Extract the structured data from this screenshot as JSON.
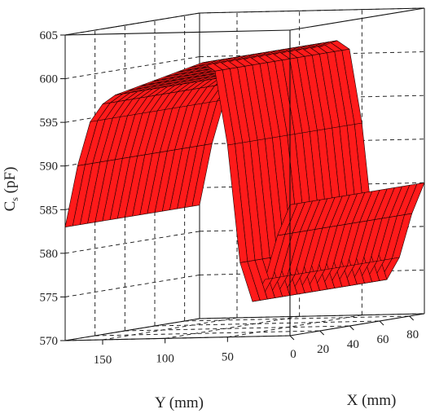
{
  "chart_data": {
    "type": "surface3d",
    "title": "",
    "xlabel": "X (mm)",
    "ylabel": "Y (mm)",
    "zlabel_main": "C",
    "zlabel_sub": "s",
    "zlabel_unit": " (pF)",
    "xlim": [
      0,
      90
    ],
    "ylim": [
      0,
      180
    ],
    "zlim": [
      570,
      605
    ],
    "x_ticks": [
      "0",
      "20",
      "40",
      "60",
      "80"
    ],
    "y_ticks": [
      "50",
      "100",
      "150"
    ],
    "z_ticks": [
      "570",
      "575",
      "580",
      "585",
      "590",
      "595",
      "600",
      "605"
    ],
    "surface_color": "#ff1a1a",
    "mesh_color": "#1a0000",
    "grid": "dashed",
    "surface_grid": {
      "x_values": [
        0,
        5,
        10,
        15,
        20,
        25,
        30,
        35,
        40,
        45,
        50,
        55,
        60,
        65,
        70,
        75,
        80,
        85,
        90
      ],
      "y_values": [
        0,
        10,
        20,
        30,
        40,
        50,
        60,
        70,
        80,
        90,
        100,
        110,
        120,
        130,
        140,
        150,
        160,
        170,
        180
      ],
      "z_values": [
        [
          585.0,
          581.5,
          576.5,
          574.0,
          578.5,
          592.0,
          600.5,
          601.5,
          601.0,
          600.5,
          600.0,
          599.5,
          599.0,
          598.5,
          598.0,
          597.0,
          595.0,
          590.0,
          583.0
        ],
        [
          585.0,
          581.5,
          576.5,
          574.0,
          578.5,
          592.0,
          600.5,
          601.5,
          601.0,
          600.5,
          600.0,
          599.5,
          599.0,
          598.5,
          598.0,
          597.0,
          595.0,
          590.0,
          583.0
        ],
        [
          585.0,
          581.5,
          576.5,
          574.0,
          578.5,
          592.0,
          600.5,
          601.5,
          601.0,
          600.5,
          600.0,
          599.5,
          599.0,
          598.5,
          598.0,
          597.0,
          595.0,
          590.0,
          583.0
        ],
        [
          585.0,
          581.5,
          576.5,
          574.0,
          578.5,
          592.0,
          600.5,
          601.5,
          601.0,
          600.5,
          600.0,
          599.5,
          599.0,
          598.5,
          598.0,
          597.0,
          595.0,
          590.0,
          583.0
        ],
        [
          585.0,
          581.5,
          576.5,
          574.0,
          578.5,
          592.0,
          600.5,
          601.5,
          601.0,
          600.5,
          600.0,
          599.5,
          599.0,
          598.5,
          598.0,
          597.0,
          595.0,
          590.0,
          583.0
        ],
        [
          585.0,
          581.5,
          576.5,
          574.0,
          578.5,
          592.0,
          600.5,
          601.5,
          601.0,
          600.5,
          600.0,
          599.5,
          599.0,
          598.5,
          598.0,
          597.0,
          595.0,
          590.0,
          583.0
        ],
        [
          585.0,
          581.5,
          576.5,
          574.0,
          578.5,
          592.0,
          600.5,
          601.5,
          601.0,
          600.5,
          600.0,
          599.5,
          599.0,
          598.5,
          598.0,
          597.0,
          595.0,
          590.0,
          583.0
        ],
        [
          585.0,
          581.5,
          576.5,
          574.0,
          578.5,
          592.0,
          600.5,
          601.5,
          601.0,
          600.5,
          600.0,
          599.5,
          599.0,
          598.5,
          598.0,
          597.0,
          595.0,
          590.0,
          583.0
        ],
        [
          585.0,
          581.5,
          576.5,
          574.0,
          578.5,
          592.0,
          600.5,
          601.5,
          601.0,
          600.5,
          600.0,
          599.5,
          599.0,
          598.5,
          598.0,
          597.0,
          595.0,
          590.0,
          583.0
        ],
        [
          585.0,
          581.5,
          576.5,
          574.0,
          578.5,
          592.0,
          600.5,
          601.5,
          601.0,
          600.5,
          600.0,
          599.5,
          599.0,
          598.5,
          598.0,
          597.0,
          595.0,
          590.0,
          583.0
        ],
        [
          585.0,
          581.5,
          576.5,
          574.0,
          578.5,
          592.0,
          600.5,
          601.5,
          601.0,
          600.5,
          600.0,
          599.5,
          599.0,
          598.5,
          598.0,
          597.0,
          595.0,
          590.0,
          583.0
        ],
        [
          585.0,
          581.5,
          576.5,
          574.0,
          578.5,
          592.0,
          600.5,
          601.5,
          601.0,
          600.5,
          600.0,
          599.5,
          599.0,
          598.5,
          598.0,
          597.0,
          595.0,
          590.0,
          583.0
        ],
        [
          585.0,
          581.5,
          576.5,
          574.0,
          578.5,
          592.0,
          600.5,
          601.5,
          601.0,
          600.5,
          600.0,
          599.5,
          599.0,
          598.5,
          598.0,
          597.0,
          595.0,
          590.0,
          583.0
        ],
        [
          585.0,
          581.5,
          576.5,
          574.0,
          578.5,
          592.0,
          600.5,
          601.5,
          601.0,
          600.5,
          600.0,
          599.5,
          599.0,
          598.5,
          598.0,
          597.0,
          595.0,
          590.0,
          583.0
        ],
        [
          585.0,
          581.5,
          576.5,
          574.0,
          578.5,
          592.0,
          600.5,
          601.5,
          601.0,
          600.5,
          600.0,
          599.5,
          599.0,
          598.5,
          598.0,
          597.0,
          595.0,
          590.0,
          583.0
        ],
        [
          585.0,
          581.5,
          576.5,
          574.0,
          578.5,
          592.0,
          600.5,
          601.5,
          601.0,
          600.5,
          600.0,
          599.5,
          599.0,
          598.5,
          598.0,
          597.0,
          595.0,
          590.0,
          583.0
        ],
        [
          585.0,
          581.5,
          576.5,
          574.0,
          578.5,
          592.0,
          600.5,
          601.5,
          601.0,
          600.5,
          600.0,
          599.5,
          599.0,
          598.5,
          598.0,
          597.0,
          595.0,
          590.0,
          583.0
        ],
        [
          585.0,
          581.5,
          576.5,
          574.0,
          578.5,
          592.0,
          600.5,
          601.5,
          601.0,
          600.5,
          600.0,
          599.5,
          599.0,
          598.5,
          598.0,
          597.0,
          595.0,
          590.0,
          583.0
        ],
        [
          585.0,
          581.5,
          576.5,
          574.0,
          578.5,
          592.0,
          600.5,
          601.5,
          601.0,
          600.5,
          600.0,
          599.5,
          599.0,
          598.5,
          598.0,
          597.0,
          595.0,
          590.0,
          583.0
        ]
      ]
    }
  }
}
